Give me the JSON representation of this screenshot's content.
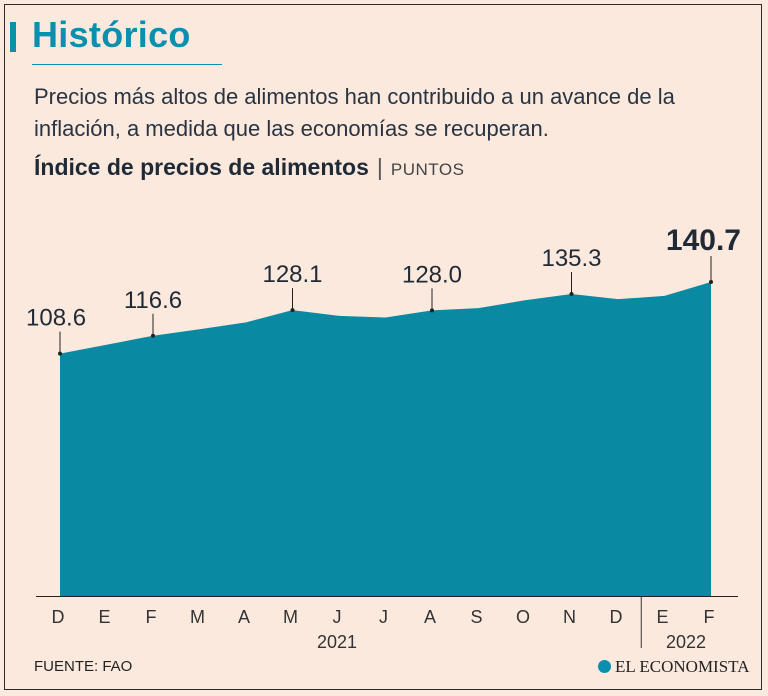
{
  "header": {
    "title": "Histórico",
    "subtitle": "Precios más altos de alimentos han contribuido a un avance de la inflación, a medida que las economías se recuperan.",
    "chart_title": "Índice de precios de alimentos",
    "separator": "|",
    "unit": "PUNTOS"
  },
  "footer": {
    "source": "FUENTE: FAO",
    "brand": "EL ECONOMISTA"
  },
  "colors": {
    "accent": "#0b8faf",
    "area": "#0a89a3",
    "background": "#fbe9de"
  },
  "chart_data": {
    "type": "area",
    "title": "Índice de precios de alimentos",
    "ylabel": "PUNTOS",
    "ylim": [
      0,
      145
    ],
    "categories": [
      "D",
      "E",
      "F",
      "M",
      "A",
      "M",
      "J",
      "J",
      "A",
      "S",
      "O",
      "N",
      "D",
      "E",
      "F"
    ],
    "values": [
      108.6,
      112.6,
      116.6,
      119.5,
      122.6,
      128.1,
      125.5,
      124.8,
      128.0,
      129.0,
      132.5,
      135.3,
      133.0,
      134.5,
      140.7
    ],
    "labeled_points": [
      {
        "index": 0,
        "label": "108.6"
      },
      {
        "index": 2,
        "label": "116.6"
      },
      {
        "index": 5,
        "label": "128.1"
      },
      {
        "index": 8,
        "label": "128.0"
      },
      {
        "index": 11,
        "label": "135.3"
      },
      {
        "index": 14,
        "label": "140.7",
        "bold": true
      }
    ],
    "year_groups": [
      {
        "label": "2021",
        "start": 1,
        "end": 12
      },
      {
        "label": "2022",
        "start": 13,
        "end": 14
      }
    ]
  }
}
